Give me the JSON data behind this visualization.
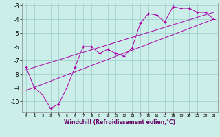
{
  "xlabel": "Windchill (Refroidissement éolien,°C)",
  "bg_color": "#cceee8",
  "grid_color": "#99cccc",
  "line_color": "#aa00aa",
  "line1": {
    "x": [
      0,
      1,
      2,
      3,
      4,
      5,
      6,
      7,
      8,
      9,
      10,
      11,
      12,
      13,
      14,
      15,
      16,
      17,
      18,
      19,
      20,
      21,
      22,
      23
    ],
    "y": [
      -7.5,
      -9.0,
      -9.5,
      -10.5,
      -10.2,
      -9.0,
      -7.5,
      -6.0,
      -6.0,
      -6.5,
      -6.2,
      -6.5,
      -6.7,
      -6.1,
      -4.3,
      -3.6,
      -3.7,
      -4.2,
      -3.1,
      -3.2,
      -3.2,
      -3.5,
      -3.5,
      -4.0
    ]
  },
  "line3": {
    "x": [
      0,
      23
    ],
    "y": [
      -7.7,
      -3.5
    ]
  },
  "line4": {
    "x": [
      0,
      23
    ],
    "y": [
      -9.2,
      -4.0
    ]
  },
  "xlim": [
    -0.5,
    23.5
  ],
  "ylim": [
    -10.8,
    -2.8
  ],
  "xticks": [
    0,
    1,
    2,
    3,
    4,
    5,
    6,
    7,
    8,
    9,
    10,
    11,
    12,
    13,
    14,
    15,
    16,
    17,
    18,
    19,
    20,
    21,
    22,
    23
  ],
  "yticks": [
    -10,
    -9,
    -8,
    -7,
    -6,
    -5,
    -4,
    -3
  ]
}
